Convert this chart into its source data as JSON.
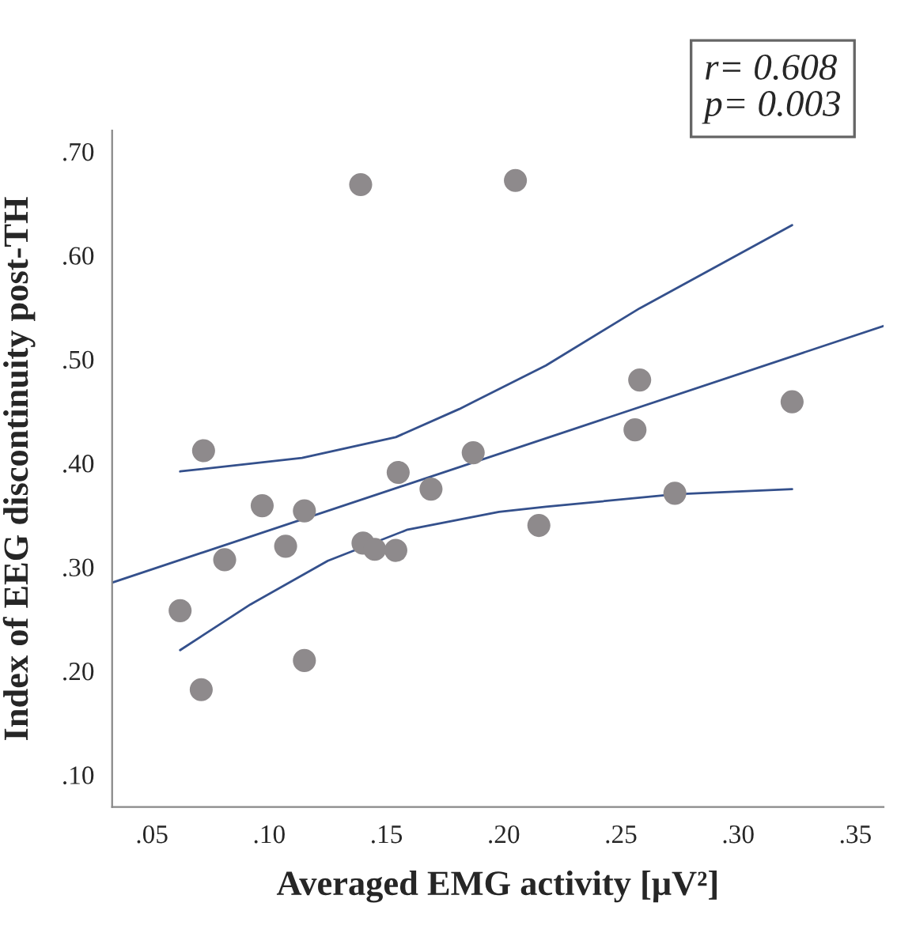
{
  "chart_data": {
    "type": "scatter",
    "xlabel": "Averaged EMG activity [μV²]",
    "ylabel": "Index of EEG discontinuity post-TH",
    "annotations": [
      "r= 0.608",
      "p= 0.003"
    ],
    "xlim": [
      0.033,
      0.362
    ],
    "ylim": [
      0.069,
      0.72
    ],
    "xticks": [
      {
        "value": 0.05,
        "label": ".05"
      },
      {
        "value": 0.1,
        "label": ".10"
      },
      {
        "value": 0.15,
        "label": ".15"
      },
      {
        "value": 0.2,
        "label": ".20"
      },
      {
        "value": 0.25,
        "label": ".25"
      },
      {
        "value": 0.3,
        "label": ".30"
      },
      {
        "value": 0.35,
        "label": ".35"
      }
    ],
    "yticks": [
      {
        "value": 0.1,
        "label": ".10"
      },
      {
        "value": 0.2,
        "label": ".20"
      },
      {
        "value": 0.3,
        "label": ".30"
      },
      {
        "value": 0.4,
        "label": ".40"
      },
      {
        "value": 0.5,
        "label": ".50"
      },
      {
        "value": 0.6,
        "label": ".60"
      },
      {
        "value": 0.7,
        "label": ".70"
      }
    ],
    "grid": false,
    "legend": false,
    "series": [
      {
        "marker": "circle",
        "color": "#8e8a8c",
        "x": [
          0.139,
          0.072,
          0.062,
          0.071,
          0.081,
          0.097,
          0.107,
          0.115,
          0.115,
          0.14,
          0.145,
          0.154,
          0.155,
          0.169,
          0.187,
          0.205,
          0.215,
          0.258,
          0.256,
          0.273,
          0.323
        ],
        "values": [
          0.668,
          0.412,
          0.258,
          0.182,
          0.307,
          0.359,
          0.32,
          0.354,
          0.21,
          0.323,
          0.317,
          0.316,
          0.391,
          0.375,
          0.41,
          0.672,
          0.34,
          0.48,
          0.432,
          0.371,
          0.459
        ]
      },
      {
        "type": "line",
        "color": "#34508c",
        "x": [
          0.033,
          0.362
        ],
        "values": [
          0.285,
          0.532
        ]
      },
      {
        "type": "line",
        "color": "#34508c",
        "x": [
          0.062,
          0.114,
          0.154,
          0.181,
          0.218,
          0.258,
          0.323
        ],
        "values": [
          0.392,
          0.405,
          0.425,
          0.452,
          0.494,
          0.549,
          0.629
        ]
      },
      {
        "type": "line",
        "color": "#34508c",
        "x": [
          0.062,
          0.092,
          0.125,
          0.159,
          0.198,
          0.218,
          0.273,
          0.323
        ],
        "values": [
          0.22,
          0.264,
          0.306,
          0.336,
          0.353,
          0.358,
          0.37,
          0.375
        ]
      }
    ]
  }
}
